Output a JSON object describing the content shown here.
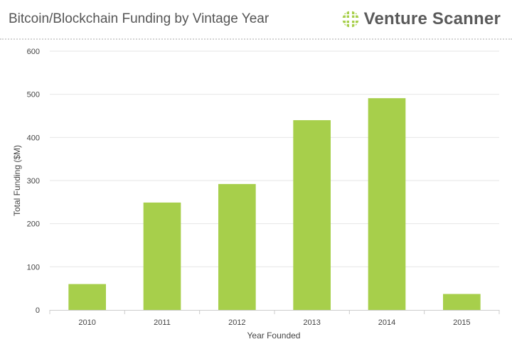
{
  "header": {
    "title": "Bitcoin/Blockchain Funding by Vintage Year",
    "brand": "Venture Scanner",
    "brand_logo_icon": "venture-scanner-logo-icon",
    "brand_color": "#a7cf4b"
  },
  "chart_data": {
    "type": "bar",
    "title": "Bitcoin/Blockchain Funding by Vintage Year",
    "xlabel": "Year Founded",
    "ylabel": "Total Funding ($M)",
    "categories": [
      "2010",
      "2011",
      "2012",
      "2013",
      "2014",
      "2015"
    ],
    "values": [
      60,
      249,
      292,
      440,
      491,
      37
    ],
    "ylim": [
      0,
      600
    ],
    "yticks": [
      0,
      100,
      200,
      300,
      400,
      500,
      600
    ],
    "grid": true,
    "bar_color": "#a7cf4b",
    "grid_color": "#e6e6e6",
    "legend": "none"
  }
}
